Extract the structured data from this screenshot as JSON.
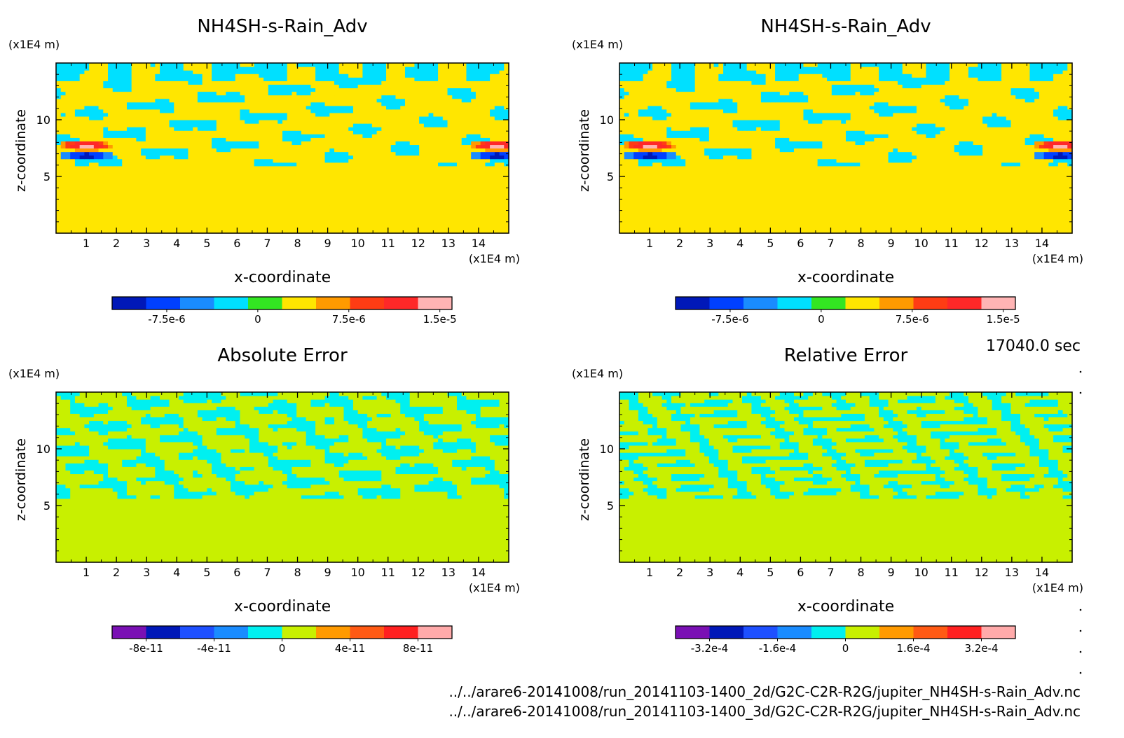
{
  "time_label": "17040.0 sec",
  "files": [
    "../../arare6-20141008/run_20141103-1400_2d/G2C-C2R-R2G/jupiter_NH4SH-s-Rain_Adv.nc",
    "../../arare6-20141008/run_20141103-1400_3d/G2C-C2R-R2G/jupiter_NH4SH-s-Rain_Adv.nc"
  ],
  "chart_data": [
    {
      "type": "heatmap",
      "title": "NH4SH-s-Rain_Adv",
      "xlabel": "x-coordinate",
      "ylabel": "z-coordinate",
      "x_unit": "(x1E4 m)",
      "y_unit": "(x1E4 m)",
      "xlim": [
        0,
        15
      ],
      "ylim": [
        0,
        15
      ],
      "x_ticks": [
        1,
        2,
        3,
        4,
        5,
        6,
        7,
        8,
        9,
        10,
        11,
        12,
        13,
        14
      ],
      "y_ticks": [
        5,
        10
      ],
      "colorbar": {
        "tick_labels": [
          "-7.5e-6",
          "0",
          "7.5e-6",
          "1.5e-5"
        ],
        "tick_values": [
          -7.5e-06,
          0,
          7.5e-06,
          1.5e-05
        ],
        "range": [
          -1.2e-05,
          1.6e-05
        ],
        "colors": [
          "#0018b8",
          "#0040ff",
          "#1a8cff",
          "#00e0ff",
          "#33e622",
          "#ffe600",
          "#ff9a00",
          "#ff3c14",
          "#ff2828",
          "#ffb4b4"
        ]
      },
      "field": "rain"
    },
    {
      "type": "heatmap",
      "title": "NH4SH-s-Rain_Adv",
      "xlabel": "x-coordinate",
      "ylabel": "z-coordinate",
      "x_unit": "(x1E4 m)",
      "y_unit": "(x1E4 m)",
      "xlim": [
        0,
        15
      ],
      "ylim": [
        0,
        15
      ],
      "x_ticks": [
        1,
        2,
        3,
        4,
        5,
        6,
        7,
        8,
        9,
        10,
        11,
        12,
        13,
        14
      ],
      "y_ticks": [
        5,
        10
      ],
      "colorbar": {
        "tick_labels": [
          "-7.5e-6",
          "0",
          "7.5e-6",
          "1.5e-5"
        ],
        "tick_values": [
          -7.5e-06,
          0,
          7.5e-06,
          1.5e-05
        ],
        "range": [
          -1.2e-05,
          1.6e-05
        ],
        "colors": [
          "#0018b8",
          "#0040ff",
          "#1a8cff",
          "#00e0ff",
          "#33e622",
          "#ffe600",
          "#ff9a00",
          "#ff3c14",
          "#ff2828",
          "#ffb4b4"
        ]
      },
      "field": "rain"
    },
    {
      "type": "heatmap",
      "title": "Absolute Error",
      "xlabel": "x-coordinate",
      "ylabel": "z-coordinate",
      "x_unit": "(x1E4 m)",
      "y_unit": "(x1E4 m)",
      "xlim": [
        0,
        15
      ],
      "ylim": [
        0,
        15
      ],
      "x_ticks": [
        1,
        2,
        3,
        4,
        5,
        6,
        7,
        8,
        9,
        10,
        11,
        12,
        13,
        14
      ],
      "y_ticks": [
        5,
        10
      ],
      "colorbar": {
        "tick_labels": [
          "-8e-11",
          "-4e-11",
          "0",
          "4e-11",
          "8e-11"
        ],
        "tick_values": [
          -8e-11,
          -4e-11,
          0,
          4e-11,
          8e-11
        ],
        "range": [
          -1e-10,
          1e-10
        ],
        "colors": [
          "#7a10b4",
          "#0018b8",
          "#1e50ff",
          "#1a8cff",
          "#00f0f0",
          "#c8f000",
          "#ff9a00",
          "#ff5a14",
          "#ff2020",
          "#ffaaaa"
        ]
      },
      "field": "abs"
    },
    {
      "type": "heatmap",
      "title": "Relative Error",
      "xlabel": "x-coordinate",
      "ylabel": "z-coordinate",
      "x_unit": "(x1E4 m)",
      "y_unit": "(x1E4 m)",
      "xlim": [
        0,
        15
      ],
      "ylim": [
        0,
        15
      ],
      "x_ticks": [
        1,
        2,
        3,
        4,
        5,
        6,
        7,
        8,
        9,
        10,
        11,
        12,
        13,
        14
      ],
      "y_ticks": [
        5,
        10
      ],
      "colorbar": {
        "tick_labels": [
          "-3.2e-4",
          "-1.6e-4",
          "0",
          "1.6e-4",
          "3.2e-4"
        ],
        "tick_values": [
          -0.00032,
          -0.00016,
          0,
          0.00016,
          0.00032
        ],
        "range": [
          -0.0004,
          0.0004
        ],
        "colors": [
          "#7a10b4",
          "#0018b8",
          "#1e50ff",
          "#1a8cff",
          "#00f0f0",
          "#c8f000",
          "#ff9a00",
          "#ff5a14",
          "#ff2020",
          "#ffaaaa"
        ]
      },
      "field": "rel"
    }
  ]
}
